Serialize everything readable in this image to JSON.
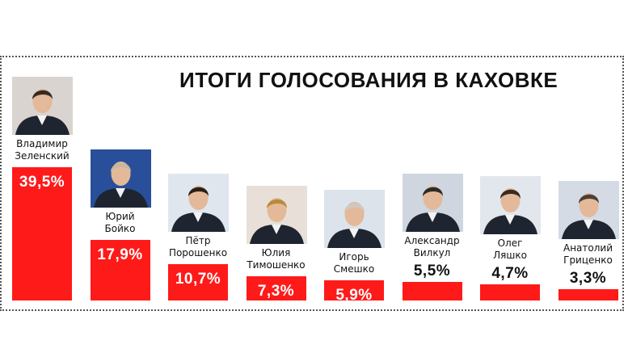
{
  "chart_data": {
    "type": "bar",
    "title": "ИТОГИ ГОЛОСОВАНИЯ В КАХОВКЕ",
    "categories": [
      "Владимир\nЗеленский",
      "Юрий\nБойко",
      "Пётр\nПорошенко",
      "Юлия\nТимошенко",
      "Игорь\nСмешко",
      "Александр\nВилкул",
      "Олег\nЛяшко",
      "Анатолий\nГриценко"
    ],
    "values": [
      39.5,
      17.9,
      10.7,
      7.3,
      5.9,
      5.5,
      4.7,
      3.3
    ],
    "value_labels": [
      "39,5%",
      "17,9%",
      "10,7%",
      "7,3%",
      "5,9%",
      "5,5%",
      "4,7%",
      "3,3%"
    ],
    "ylim": [
      0,
      39.5
    ],
    "bar_color": "#ff1a1a"
  }
}
